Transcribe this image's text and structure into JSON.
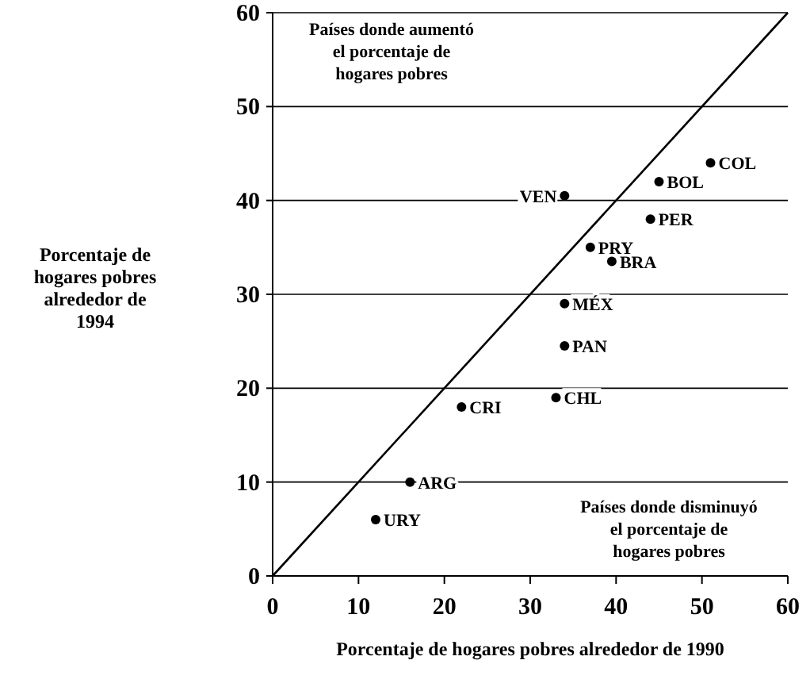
{
  "chart_data": {
    "type": "scatter",
    "xlabel": "Porcentaje de hogares pobres alrededor de 1990",
    "ylabel": "Porcentaje de hogares pobres alrededor de 1994",
    "xlim": [
      0,
      60
    ],
    "ylim": [
      0,
      60
    ],
    "xticks": [
      0,
      10,
      20,
      30,
      40,
      50,
      60
    ],
    "yticks": [
      0,
      10,
      20,
      30,
      40,
      50,
      60
    ],
    "grid": "y",
    "marker": "circle",
    "annotations": [
      "Países donde aumentó el porcentaje de hogares pobres",
      "Países donde disminuyó el porcentaje de hogares pobres"
    ],
    "series": [
      {
        "type": "line",
        "color": "#000000",
        "x": [
          0,
          60
        ],
        "values": [
          0,
          60
        ],
        "line_style": "solid",
        "marker": "none"
      },
      {
        "name": "COL",
        "color": "#000000",
        "x": [
          51
        ],
        "values": [
          44
        ]
      },
      {
        "name": "BOL",
        "color": "#000000",
        "x": [
          45
        ],
        "values": [
          42
        ]
      },
      {
        "name": "VEN",
        "color": "#000000",
        "x": [
          34
        ],
        "values": [
          40.5
        ]
      },
      {
        "name": "PER",
        "color": "#000000",
        "x": [
          44
        ],
        "values": [
          38
        ]
      },
      {
        "name": "PRY",
        "color": "#000000",
        "x": [
          37
        ],
        "values": [
          35
        ]
      },
      {
        "name": "BRA",
        "color": "#000000",
        "x": [
          39.5
        ],
        "values": [
          33.5
        ]
      },
      {
        "name": "MÉX",
        "color": "#000000",
        "x": [
          34
        ],
        "values": [
          29
        ]
      },
      {
        "name": "PAN",
        "color": "#000000",
        "x": [
          34
        ],
        "values": [
          24.5
        ]
      },
      {
        "name": "CHL",
        "color": "#000000",
        "x": [
          33
        ],
        "values": [
          19
        ]
      },
      {
        "name": "CRI",
        "color": "#000000",
        "x": [
          22
        ],
        "values": [
          18
        ]
      },
      {
        "name": "ARG",
        "color": "#000000",
        "x": [
          16
        ],
        "values": [
          10
        ]
      },
      {
        "name": "URY",
        "color": "#000000",
        "x": [
          12
        ],
        "values": [
          6
        ]
      }
    ]
  }
}
